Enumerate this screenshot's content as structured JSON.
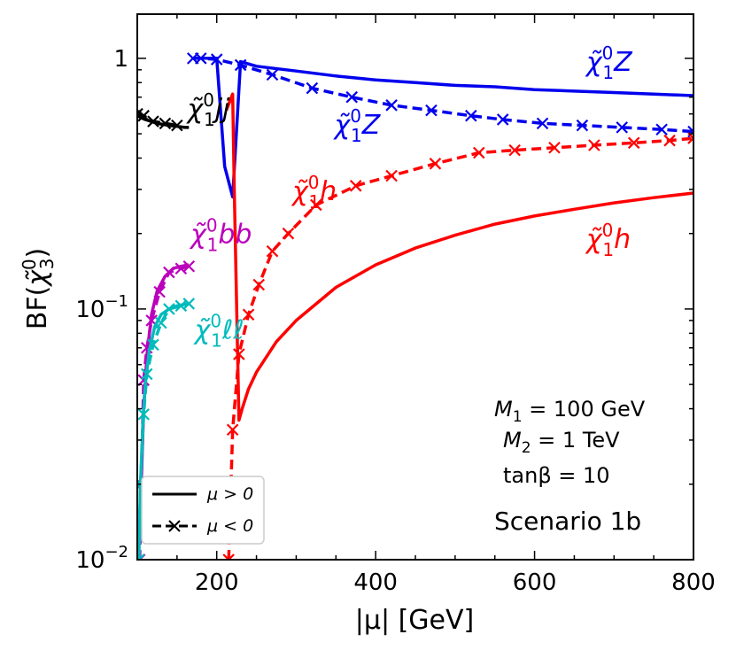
{
  "chart_data": {
    "type": "line",
    "title": "",
    "xlabel": "|μ| [GeV]",
    "ylabel": "BF(χ̃₃⁰)",
    "ylabel_parts": {
      "main": "BF(",
      "chi": "χ̃",
      "sub": "3",
      "sup": "0",
      "close": ")"
    },
    "xlim": [
      100,
      800
    ],
    "ylim": [
      0.01,
      1.5
    ],
    "yscale": "log",
    "xticks": [
      {
        "value": 200,
        "label": "200"
      },
      {
        "value": 400,
        "label": "400"
      },
      {
        "value": 600,
        "label": "600"
      },
      {
        "value": 800,
        "label": "800"
      }
    ],
    "yticks": [
      {
        "value": 1,
        "base": "1",
        "exp": ""
      },
      {
        "value": 0.1,
        "base": "10",
        "exp": "−1"
      },
      {
        "value": 0.01,
        "base": "10",
        "exp": "−2"
      }
    ],
    "grid": false,
    "legend": {
      "position": "lower-left",
      "entries": [
        {
          "label": "μ > 0",
          "style": "solid"
        },
        {
          "label": "μ < 0",
          "style": "dashed-x"
        }
      ]
    },
    "annotations": [
      "M₁ = 100 GeV",
      "M₂ = 1 TeV",
      "tanβ = 10"
    ],
    "annotation_parts": [
      {
        "sym": "M",
        "sub": "1",
        "rest": " = 100 GeV"
      },
      {
        "sym": "M",
        "sub": "2",
        "rest": " = 1 TeV"
      },
      {
        "sym": "tanβ",
        "sub": "",
        "rest": " = 10"
      }
    ],
    "scenario_label": "Scenario 1b",
    "series": [
      {
        "name": "χ̃₁⁰Z",
        "sign": "positive",
        "style": "solid",
        "color": "#0000ee",
        "x": [
          170,
          200,
          210,
          220,
          230,
          250,
          300,
          350,
          400,
          450,
          500,
          550,
          600,
          650,
          700,
          750,
          800
        ],
        "y": [
          1.0,
          1.0,
          0.37,
          0.28,
          0.97,
          0.93,
          0.89,
          0.85,
          0.82,
          0.8,
          0.78,
          0.77,
          0.75,
          0.74,
          0.73,
          0.72,
          0.71
        ]
      },
      {
        "name": "χ̃₁⁰Z",
        "sign": "negative",
        "style": "dashed-x",
        "color": "#0000ee",
        "x": [
          170,
          180,
          200,
          230,
          270,
          320,
          370,
          420,
          470,
          520,
          560,
          610,
          660,
          710,
          760,
          800
        ],
        "y": [
          1.0,
          1.0,
          0.99,
          0.94,
          0.86,
          0.76,
          0.7,
          0.65,
          0.62,
          0.59,
          0.57,
          0.55,
          0.54,
          0.53,
          0.52,
          0.51
        ]
      },
      {
        "name": "χ̃₁⁰h",
        "sign": "positive",
        "style": "solid",
        "color": "#ff0000",
        "x": [
          212,
          220,
          222,
          228,
          232,
          240,
          250,
          275,
          300,
          350,
          400,
          450,
          500,
          550,
          600,
          650,
          700,
          750,
          800
        ],
        "y": [
          0.62,
          0.72,
          0.3,
          0.036,
          0.04,
          0.048,
          0.056,
          0.074,
          0.09,
          0.122,
          0.15,
          0.175,
          0.197,
          0.218,
          0.235,
          0.25,
          0.265,
          0.278,
          0.29
        ]
      },
      {
        "name": "χ̃₁⁰h",
        "sign": "negative",
        "style": "dashed-x",
        "color": "#ff0000",
        "x": [
          215,
          220,
          228,
          240,
          253,
          270,
          290,
          325,
          375,
          420,
          475,
          530,
          575,
          625,
          675,
          725,
          770,
          800
        ],
        "y": [
          0.01,
          0.033,
          0.066,
          0.095,
          0.125,
          0.17,
          0.2,
          0.26,
          0.31,
          0.34,
          0.38,
          0.42,
          0.43,
          0.44,
          0.45,
          0.46,
          0.47,
          0.48
        ]
      },
      {
        "name": "χ̃₁⁰jj",
        "sign": "positive",
        "style": "solid",
        "color": "#000000",
        "x": [
          100,
          110,
          125,
          140,
          150,
          160,
          165
        ],
        "y": [
          0.59,
          0.57,
          0.55,
          0.54,
          0.535,
          0.53,
          0.53
        ]
      },
      {
        "name": "χ̃₁⁰jj",
        "sign": "negative",
        "style": "dashed-x",
        "color": "#000000",
        "x": [
          100,
          108,
          120,
          135,
          150
        ],
        "y": [
          0.6,
          0.59,
          0.56,
          0.55,
          0.54
        ]
      },
      {
        "name": "χ̃₁⁰bb",
        "sign": "positive",
        "style": "solid",
        "color": "#bb00bb",
        "x": [
          103,
          105,
          108,
          112,
          118,
          125,
          135,
          145,
          155,
          165
        ],
        "y": [
          0.012,
          0.02,
          0.04,
          0.065,
          0.095,
          0.118,
          0.135,
          0.145,
          0.148,
          0.15
        ]
      },
      {
        "name": "χ̃₁⁰bb",
        "sign": "negative",
        "style": "dashed-x",
        "color": "#bb00bb",
        "x": [
          103,
          105,
          108,
          112,
          118,
          128,
          140,
          155,
          165
        ],
        "y": [
          0.01,
          0.02,
          0.052,
          0.07,
          0.09,
          0.117,
          0.14,
          0.145,
          0.148
        ]
      },
      {
        "name": "χ̃₁⁰ℓℓ",
        "sign": "positive",
        "style": "solid",
        "color": "#00bbbb",
        "x": [
          102,
          104,
          107,
          110,
          115,
          122,
          130,
          140,
          150,
          165
        ],
        "y": [
          0.01,
          0.02,
          0.035,
          0.05,
          0.068,
          0.085,
          0.095,
          0.1,
          0.103,
          0.105
        ]
      },
      {
        "name": "χ̃₁⁰ℓℓ",
        "sign": "negative",
        "style": "dashed-x",
        "color": "#00bbbb",
        "x": [
          102,
          104,
          108,
          112,
          120,
          130,
          140,
          155,
          165
        ],
        "y": [
          0.01,
          0.02,
          0.038,
          0.055,
          0.072,
          0.088,
          0.1,
          0.103,
          0.105
        ]
      }
    ],
    "curve_labels": [
      {
        "text_main": "χ̃",
        "sup": "0",
        "sub": "1",
        "tail": "Z",
        "color": "#0000ee",
        "at_x": 665,
        "at_y": 0.89
      },
      {
        "text_main": "χ̃",
        "sup": "0",
        "sub": "1",
        "tail": "Z",
        "color": "#0000ee",
        "at_x": 348,
        "at_y": 0.5
      },
      {
        "text_main": "χ̃",
        "sup": "0",
        "sub": "1",
        "tail": "h",
        "color": "#ff0000",
        "at_x": 295,
        "at_y": 0.272
      },
      {
        "text_main": "χ̃",
        "sup": "0",
        "sub": "1",
        "tail": "h",
        "color": "#ff0000",
        "at_x": 665,
        "at_y": 0.175
      },
      {
        "text_main": "χ̃",
        "sup": "0",
        "sub": "1",
        "tail": "jj",
        "color": "#000000",
        "at_x": 163,
        "at_y": 0.58
      },
      {
        "text_main": "χ̃",
        "sup": "0",
        "sub": "1",
        "tail": "bb",
        "color": "#bb00bb",
        "at_x": 167,
        "at_y": 0.183
      },
      {
        "text_main": "χ̃",
        "sup": "0",
        "sub": "1",
        "tail": "ℓℓ",
        "color": "#00bbbb",
        "at_x": 172,
        "at_y": 0.076
      }
    ]
  }
}
